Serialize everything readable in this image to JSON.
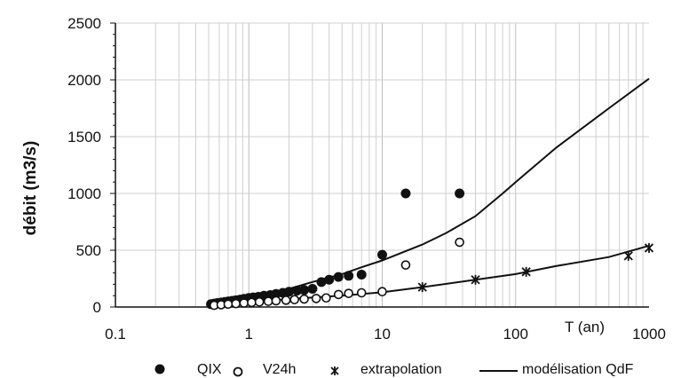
{
  "chart_data": {
    "type": "scatter",
    "x_scale": "log",
    "xlim": [
      0.1,
      1000
    ],
    "ylim": [
      0,
      2500
    ],
    "x_tick_labels": [
      "0.1",
      "1",
      "10",
      "100",
      "1000"
    ],
    "x_tick_values": [
      0.1,
      1,
      10,
      100,
      1000
    ],
    "y_tick_labels": [
      "0",
      "500",
      "1000",
      "1500",
      "2000",
      "2500"
    ],
    "y_tick_values": [
      0,
      500,
      1000,
      1500,
      2000,
      2500
    ],
    "xlabel": "T (an)",
    "ylabel": "débit (m3/s)",
    "grid": {
      "vertical_minor": true,
      "horizontal": true
    },
    "legend_position": "bottom",
    "series": [
      {
        "name": "QIX",
        "marker": "filled-circle",
        "points": [
          [
            0.52,
            25
          ],
          [
            0.55,
            30
          ],
          [
            0.58,
            35
          ],
          [
            0.62,
            40
          ],
          [
            0.66,
            45
          ],
          [
            0.7,
            50
          ],
          [
            0.75,
            55
          ],
          [
            0.8,
            60
          ],
          [
            0.86,
            65
          ],
          [
            0.92,
            72
          ],
          [
            1.0,
            80
          ],
          [
            1.08,
            85
          ],
          [
            1.18,
            90
          ],
          [
            1.3,
            100
          ],
          [
            1.45,
            105
          ],
          [
            1.6,
            115
          ],
          [
            1.8,
            125
          ],
          [
            2.0,
            135
          ],
          [
            2.3,
            145
          ],
          [
            2.6,
            150
          ],
          [
            3.0,
            160
          ],
          [
            3.5,
            220
          ],
          [
            4.0,
            240
          ],
          [
            4.7,
            265
          ],
          [
            5.6,
            275
          ],
          [
            7.0,
            285
          ],
          [
            10.0,
            460
          ],
          [
            15.0,
            1000
          ],
          [
            38.0,
            1000
          ]
        ]
      },
      {
        "name": "V24h",
        "marker": "open-circle",
        "points": [
          [
            0.55,
            15
          ],
          [
            0.62,
            20
          ],
          [
            0.7,
            25
          ],
          [
            0.8,
            30
          ],
          [
            0.92,
            35
          ],
          [
            1.05,
            40
          ],
          [
            1.2,
            45
          ],
          [
            1.4,
            50
          ],
          [
            1.6,
            55
          ],
          [
            1.9,
            60
          ],
          [
            2.2,
            65
          ],
          [
            2.6,
            70
          ],
          [
            3.2,
            75
          ],
          [
            3.8,
            80
          ],
          [
            4.7,
            110
          ],
          [
            5.6,
            120
          ],
          [
            7.0,
            125
          ],
          [
            10.0,
            135
          ],
          [
            15.0,
            370
          ],
          [
            38.0,
            570
          ]
        ]
      },
      {
        "name": "extrapolation",
        "marker": "asterisk",
        "points": [
          [
            20,
            175
          ],
          [
            50,
            240
          ],
          [
            120,
            310
          ],
          [
            700,
            450
          ],
          [
            1000,
            520
          ]
        ]
      },
      {
        "name": "modélisation QdF",
        "marker": "line",
        "lines": [
          [
            [
              0.5,
              10
            ],
            [
              1,
              90
            ],
            [
              2,
              160
            ],
            [
              3,
              220
            ],
            [
              5,
              290
            ],
            [
              7,
              350
            ],
            [
              10,
              410
            ],
            [
              20,
              550
            ],
            [
              30,
              650
            ],
            [
              50,
              800
            ],
            [
              80,
              1000
            ],
            [
              100,
              1100
            ],
            [
              200,
              1400
            ],
            [
              500,
              1750
            ],
            [
              1000,
              2010
            ]
          ],
          [
            [
              0.5,
              5
            ],
            [
              1,
              40
            ],
            [
              2,
              70
            ],
            [
              5,
              100
            ],
            [
              10,
              130
            ],
            [
              20,
              175
            ],
            [
              50,
              240
            ],
            [
              100,
              290
            ],
            [
              200,
              360
            ],
            [
              500,
              440
            ],
            [
              1000,
              540
            ]
          ]
        ]
      }
    ]
  },
  "colors": {
    "ink": "#111111",
    "grid": "#cfcfcf",
    "background": "#ffffff"
  }
}
